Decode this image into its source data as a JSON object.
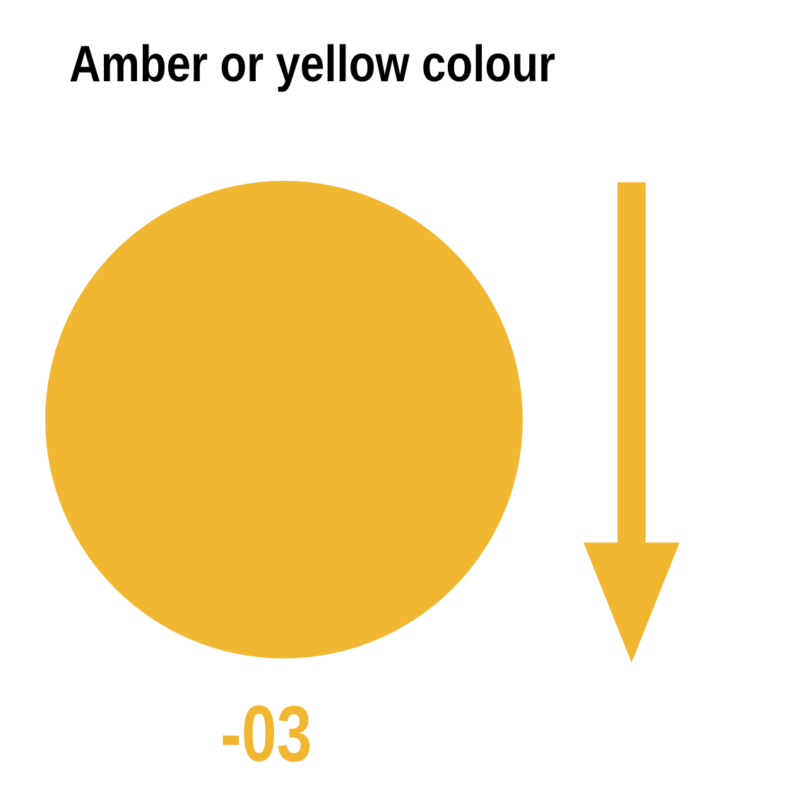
{
  "title": "Amber or yellow colour",
  "value_label": "-03",
  "arrow_icon": "down-arrow-icon",
  "colors": {
    "accent": "#F2B731",
    "title_text": "#000000",
    "background": "#FFFFFF"
  }
}
